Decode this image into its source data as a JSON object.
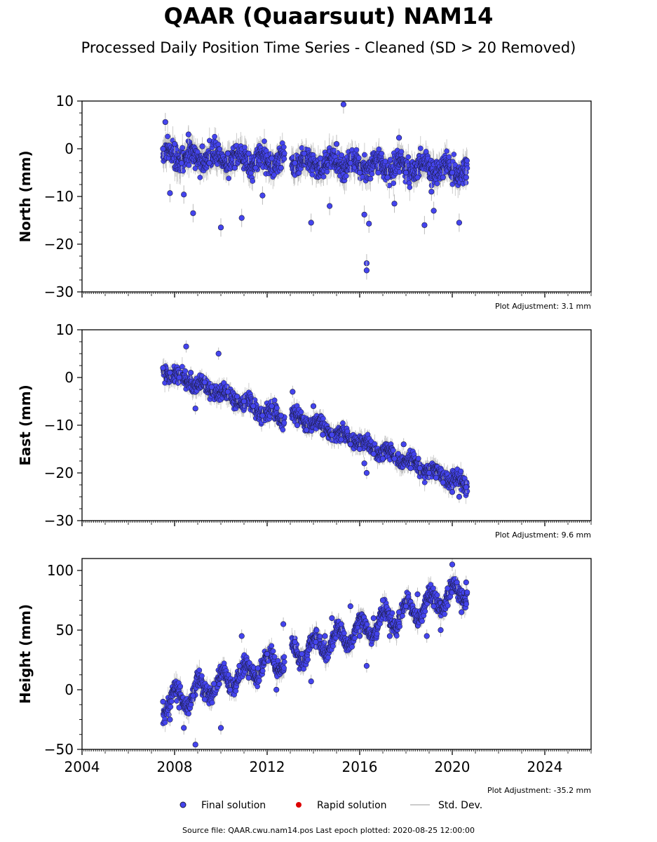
{
  "title": "QAAR (Quaarsuut) NAM14",
  "subtitle": "Processed Daily Position Time Series - Cleaned (SD > 20 Removed)",
  "source_line": "Source file: QAAR.cwu.nam14.pos  Last epoch plotted: 2020-08-25 12:00:00",
  "colors": {
    "final": "#4444ee",
    "final_edge": "#1a1a3a",
    "rapid": "#dd0000",
    "stddev": "#bbbbbb"
  },
  "legend": {
    "placement": "bottom-center",
    "items": [
      {
        "label": "Final solution",
        "marker": "dot",
        "color": "#4444ee"
      },
      {
        "label": "Rapid solution",
        "marker": "dot",
        "color": "#dd0000"
      },
      {
        "label": "Std. Dev.",
        "marker": "line",
        "color": "#bbbbbb"
      }
    ]
  },
  "chart_data": [
    {
      "type": "scatter",
      "ylabel": "North (mm)",
      "ylim": [
        -30,
        10
      ],
      "yticks": [
        10,
        0,
        -10,
        -20,
        -30
      ],
      "xlim": [
        2004,
        2026
      ],
      "xticks": [],
      "adjustment": "Plot Adjustment: 3.1 mm",
      "series": [
        {
          "values": [
            [
              2007.5,
              0
            ],
            [
              2007.6,
              5.6
            ],
            [
              2007.8,
              -9.3
            ],
            [
              2008.0,
              1
            ],
            [
              2008.3,
              -3
            ],
            [
              2008.4,
              -9.6
            ],
            [
              2008.6,
              3
            ],
            [
              2008.8,
              -13.5
            ],
            [
              2009.2,
              0.5
            ],
            [
              2009.5,
              -3
            ],
            [
              2010.0,
              -16.5
            ],
            [
              2010.3,
              -1
            ],
            [
              2010.6,
              -4
            ],
            [
              2010.9,
              -14.5
            ],
            [
              2011.2,
              -1
            ],
            [
              2011.5,
              -4
            ],
            [
              2011.8,
              -9.8
            ],
            [
              2012.2,
              -2
            ],
            [
              2012.6,
              -4
            ],
            [
              2013.2,
              -3
            ],
            [
              2013.6,
              -1
            ],
            [
              2013.9,
              -15.5
            ],
            [
              2014.3,
              -2
            ],
            [
              2014.7,
              -12
            ],
            [
              2015.0,
              1
            ],
            [
              2015.3,
              9.3
            ],
            [
              2015.6,
              -3
            ],
            [
              2016.0,
              -5
            ],
            [
              2016.2,
              -13.8
            ],
            [
              2016.3,
              -24
            ],
            [
              2016.3,
              -25.5
            ],
            [
              2016.4,
              -15.7
            ],
            [
              2016.8,
              -5
            ],
            [
              2017.2,
              -6
            ],
            [
              2017.5,
              -11.5
            ],
            [
              2017.7,
              2.3
            ],
            [
              2018.0,
              -5
            ],
            [
              2018.5,
              -6
            ],
            [
              2018.8,
              -16
            ],
            [
              2019.1,
              -9
            ],
            [
              2019.2,
              -13
            ],
            [
              2019.6,
              -6
            ],
            [
              2020.0,
              -5
            ],
            [
              2020.3,
              -15.5
            ],
            [
              2020.6,
              -6
            ]
          ]
        }
      ]
    },
    {
      "type": "scatter",
      "ylabel": "East (mm)",
      "ylim": [
        -30,
        10
      ],
      "yticks": [
        10,
        0,
        -10,
        -20,
        -30
      ],
      "xlim": [
        2004,
        2026
      ],
      "xticks": [],
      "adjustment": "Plot Adjustment: 9.6 mm",
      "series": [
        {
          "values": [
            [
              2007.5,
              2
            ],
            [
              2007.8,
              1
            ],
            [
              2008.2,
              0
            ],
            [
              2008.5,
              6.5
            ],
            [
              2008.7,
              1
            ],
            [
              2008.9,
              -6.5
            ],
            [
              2009.3,
              -1
            ],
            [
              2009.6,
              -2
            ],
            [
              2009.9,
              5
            ],
            [
              2010.3,
              -3
            ],
            [
              2010.7,
              -4
            ],
            [
              2011.0,
              -5
            ],
            [
              2011.4,
              -6
            ],
            [
              2011.8,
              -8
            ],
            [
              2012.2,
              -6
            ],
            [
              2012.6,
              -8
            ],
            [
              2013.1,
              -3
            ],
            [
              2013.3,
              -10
            ],
            [
              2013.7,
              -11
            ],
            [
              2014.0,
              -6
            ],
            [
              2014.4,
              -12
            ],
            [
              2014.8,
              -12
            ],
            [
              2015.2,
              -13
            ],
            [
              2015.6,
              -14
            ],
            [
              2016.0,
              -15
            ],
            [
              2016.2,
              -18
            ],
            [
              2016.3,
              -20
            ],
            [
              2016.6,
              -16
            ],
            [
              2017.0,
              -17
            ],
            [
              2017.5,
              -17
            ],
            [
              2017.9,
              -14
            ],
            [
              2018.2,
              -19
            ],
            [
              2018.6,
              -19
            ],
            [
              2019.0,
              -20
            ],
            [
              2019.3,
              -21
            ],
            [
              2019.6,
              -22
            ],
            [
              2020.0,
              -24
            ],
            [
              2020.3,
              -25
            ],
            [
              2020.6,
              -23
            ]
          ]
        }
      ]
    },
    {
      "type": "scatter",
      "ylabel": "Height (mm)",
      "ylim": [
        -50,
        110
      ],
      "yticks": [
        100,
        50,
        0,
        -50
      ],
      "xlim": [
        2004,
        2026
      ],
      "xticks": [
        "2004",
        "2008",
        "2012",
        "2016",
        "2020",
        "2024"
      ],
      "adjustment": "Plot Adjustment: -35.2 mm",
      "series": [
        {
          "values": [
            [
              2007.5,
              -10
            ],
            [
              2007.8,
              -25
            ],
            [
              2008.2,
              -15
            ],
            [
              2008.4,
              -32
            ],
            [
              2008.8,
              -5
            ],
            [
              2008.9,
              -46
            ],
            [
              2009.3,
              -8
            ],
            [
              2009.7,
              5
            ],
            [
              2010.0,
              -32
            ],
            [
              2010.4,
              0
            ],
            [
              2010.8,
              20
            ],
            [
              2010.9,
              45
            ],
            [
              2011.2,
              10
            ],
            [
              2011.6,
              18
            ],
            [
              2012.0,
              30
            ],
            [
              2012.4,
              0
            ],
            [
              2012.7,
              55
            ],
            [
              2013.2,
              40
            ],
            [
              2013.5,
              30
            ],
            [
              2013.9,
              7
            ],
            [
              2014.1,
              40
            ],
            [
              2014.5,
              45
            ],
            [
              2014.8,
              60
            ],
            [
              2015.2,
              55
            ],
            [
              2015.6,
              70
            ],
            [
              2016.0,
              45
            ],
            [
              2016.3,
              20
            ],
            [
              2016.6,
              60
            ],
            [
              2017.0,
              75
            ],
            [
              2017.3,
              45
            ],
            [
              2017.7,
              65
            ],
            [
              2018.0,
              70
            ],
            [
              2018.5,
              80
            ],
            [
              2018.9,
              45
            ],
            [
              2019.2,
              70
            ],
            [
              2019.5,
              50
            ],
            [
              2019.8,
              85
            ],
            [
              2020.0,
              105
            ],
            [
              2020.2,
              90
            ],
            [
              2020.4,
              65
            ],
            [
              2020.6,
              90
            ]
          ]
        }
      ]
    }
  ]
}
